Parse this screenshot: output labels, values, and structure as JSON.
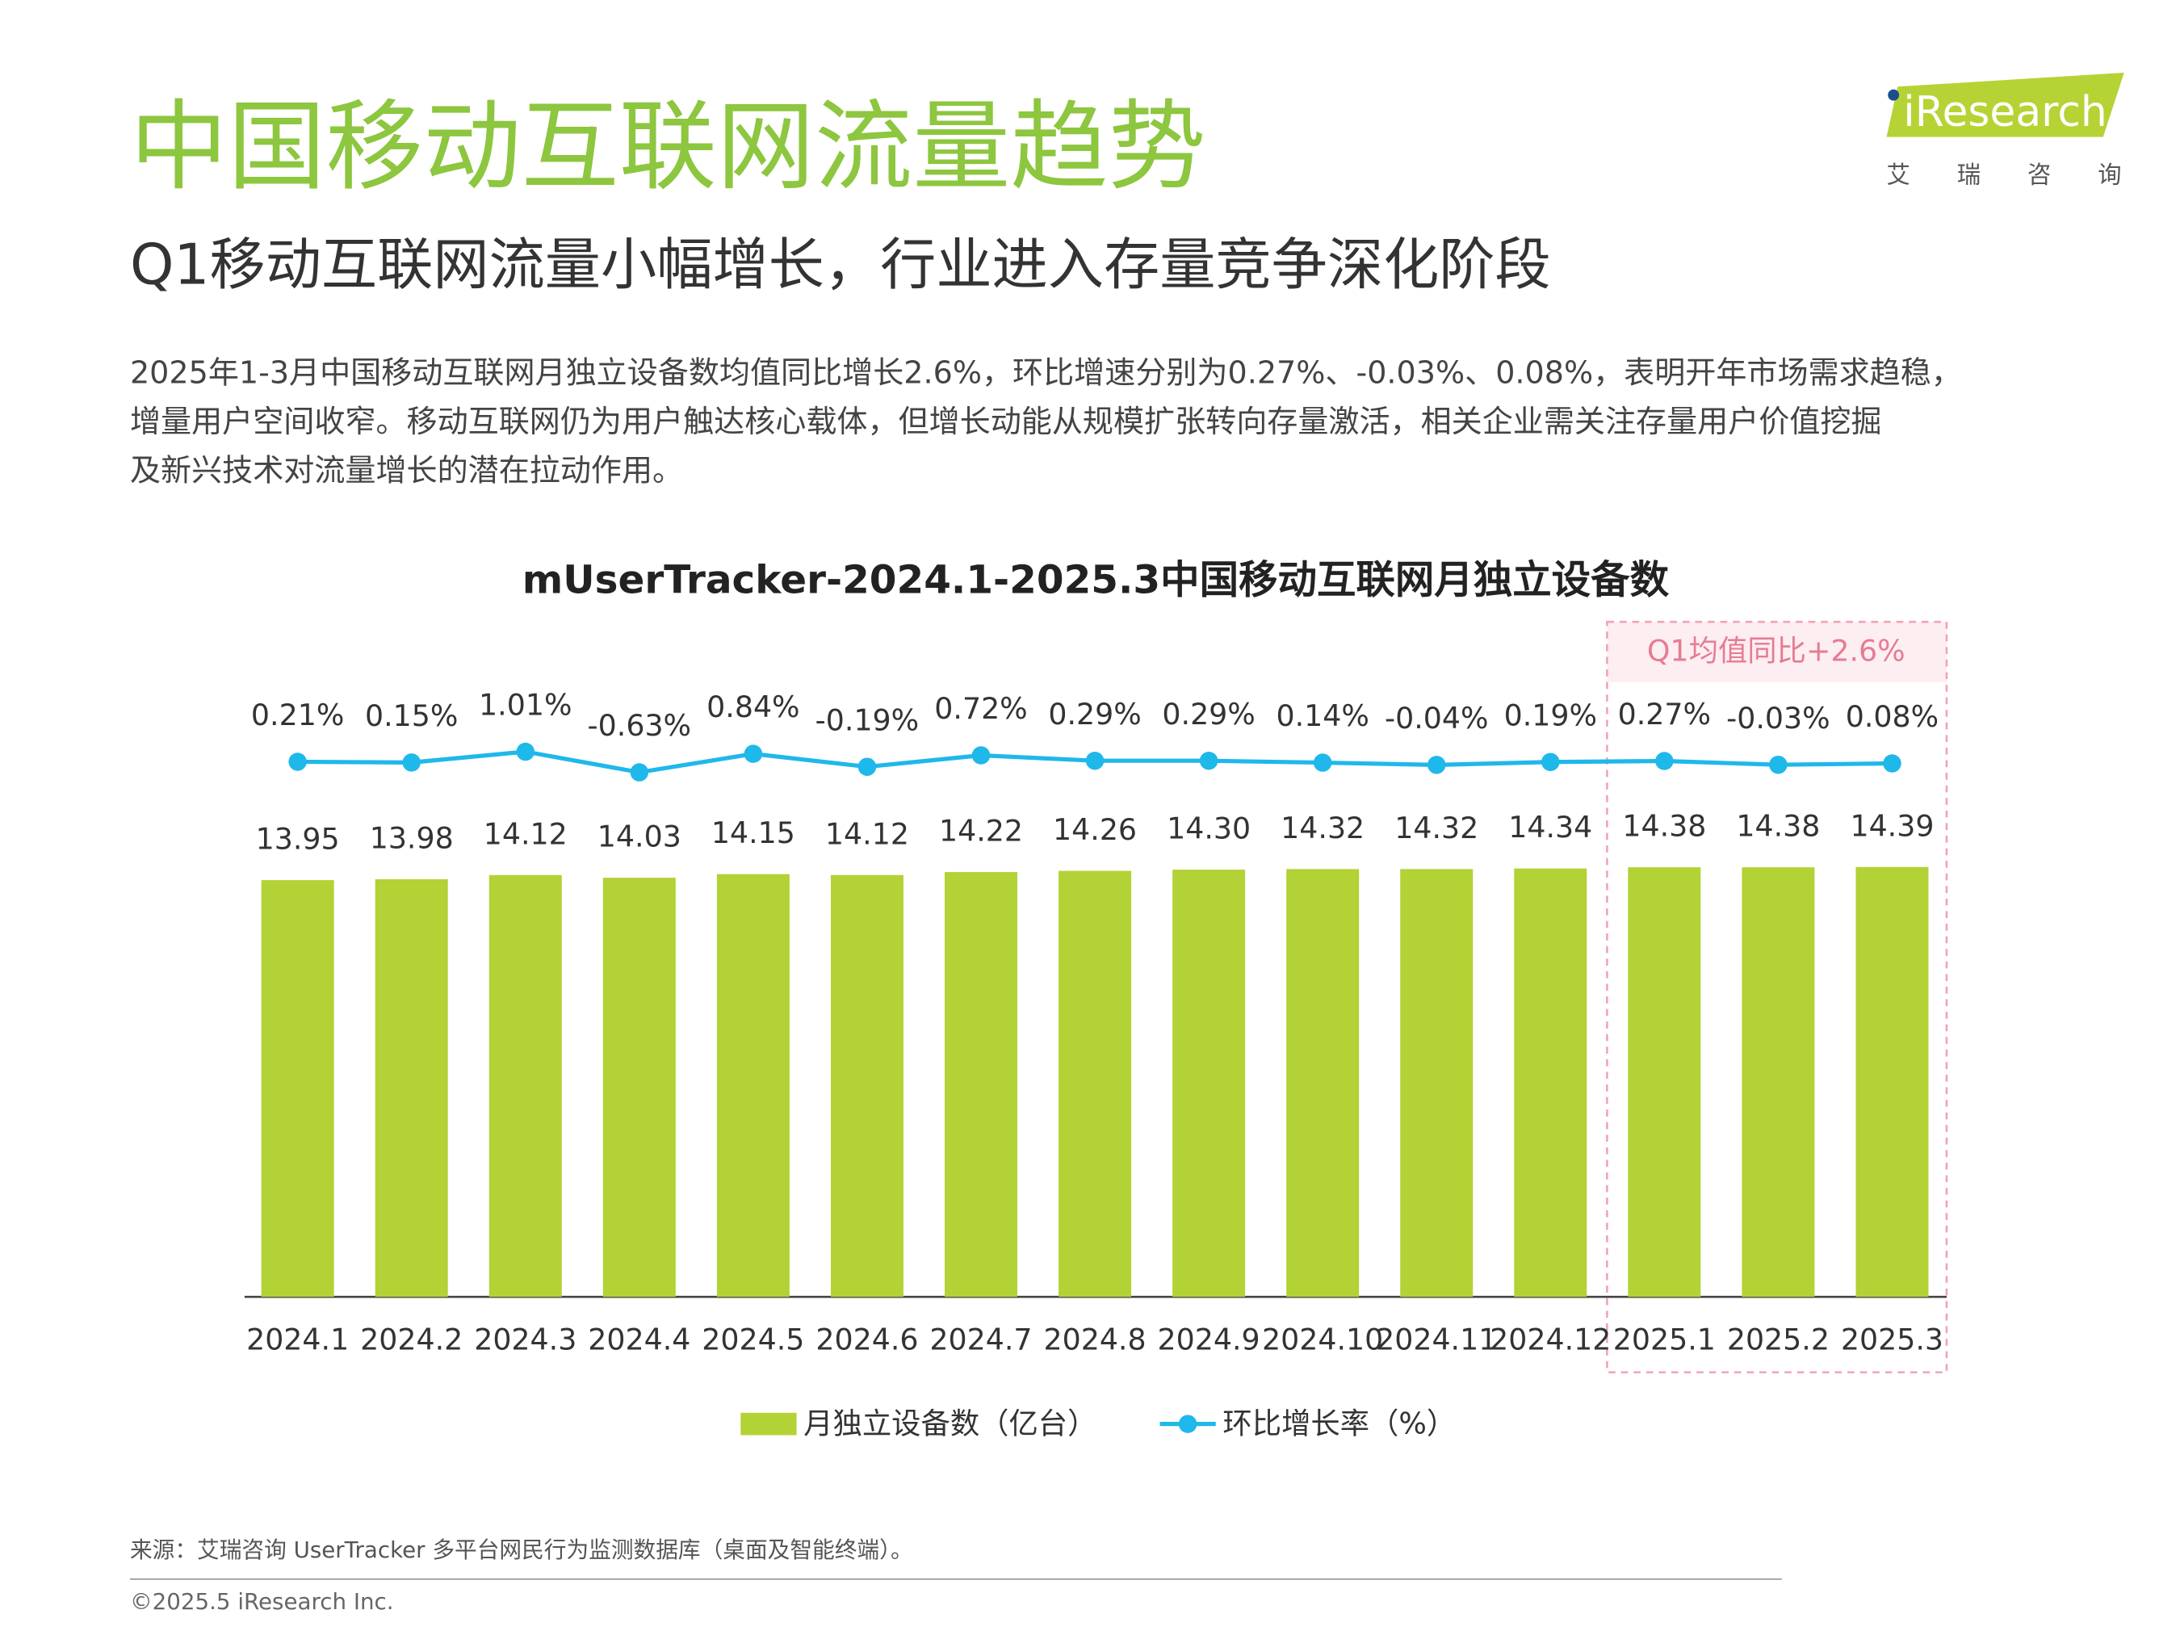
{
  "header": {
    "title": "中国移动互联网流量趋势",
    "subtitle": "Q1移动互联网流量小幅增长，行业进入存量竞争深化阶段"
  },
  "logo": {
    "brand": "iResearch",
    "cn": "艾 瑞 咨 询"
  },
  "body_lines": [
    "2025年1-3月中国移动互联网月独立设备数均值同比增长2.6%，环比增速分别为0.27%、-0.03%、0.08%，表明开年市场需求趋稳，",
    "增量用户空间收窄。移动互联网仍为用户触达核心载体，但增长动能从规模扩张转向存量激活，相关企业需关注存量用户价值挖掘",
    "及新兴技术对流量增长的潜在拉动作用。"
  ],
  "chart_data": {
    "type": "bar",
    "title": "mUserTracker-2024.1-2025.3中国移动互联网月独立设备数",
    "annotation": "Q1均值同比+2.6%",
    "categories": [
      "2024.1",
      "2024.2",
      "2024.3",
      "2024.4",
      "2024.5",
      "2024.6",
      "2024.7",
      "2024.8",
      "2024.9",
      "2024.10",
      "2024.11",
      "2024.12",
      "2025.1",
      "2025.2",
      "2025.3"
    ],
    "series": [
      {
        "name": "月独立设备数（亿台）",
        "type": "bar",
        "color": "#b2d235",
        "values": [
          13.95,
          13.98,
          14.12,
          14.03,
          14.15,
          14.12,
          14.22,
          14.26,
          14.3,
          14.32,
          14.32,
          14.34,
          14.38,
          14.38,
          14.39
        ],
        "value_labels": [
          "13.95",
          "13.98",
          "14.12",
          "14.03",
          "14.15",
          "14.12",
          "14.22",
          "14.26",
          "14.30",
          "14.32",
          "14.32",
          "14.34",
          "14.38",
          "14.38",
          "14.39"
        ]
      },
      {
        "name": "环比增长率（%）",
        "type": "line",
        "axis": "y2",
        "color": "#1fb8ea",
        "values": [
          0.21,
          0.15,
          1.01,
          -0.63,
          0.84,
          -0.19,
          0.72,
          0.29,
          0.29,
          0.14,
          -0.04,
          0.19,
          0.27,
          -0.03,
          0.08
        ],
        "value_labels": [
          "0.21%",
          "0.15%",
          "1.01%",
          "-0.63%",
          "0.84%",
          "-0.19%",
          "0.72%",
          "0.29%",
          "0.29%",
          "0.14%",
          "-0.04%",
          "0.19%",
          "0.27%",
          "-0.03%",
          "0.08%"
        ]
      }
    ],
    "ylim": [
      0,
      16
    ],
    "y2lim": [
      -5,
      5
    ],
    "grid": false
  },
  "footer": {
    "source": "来源：艾瑞咨询 UserTracker 多平台网民行为监测数据库（桌面及智能终端）。",
    "copyright": "©2025.5 iResearch Inc."
  }
}
